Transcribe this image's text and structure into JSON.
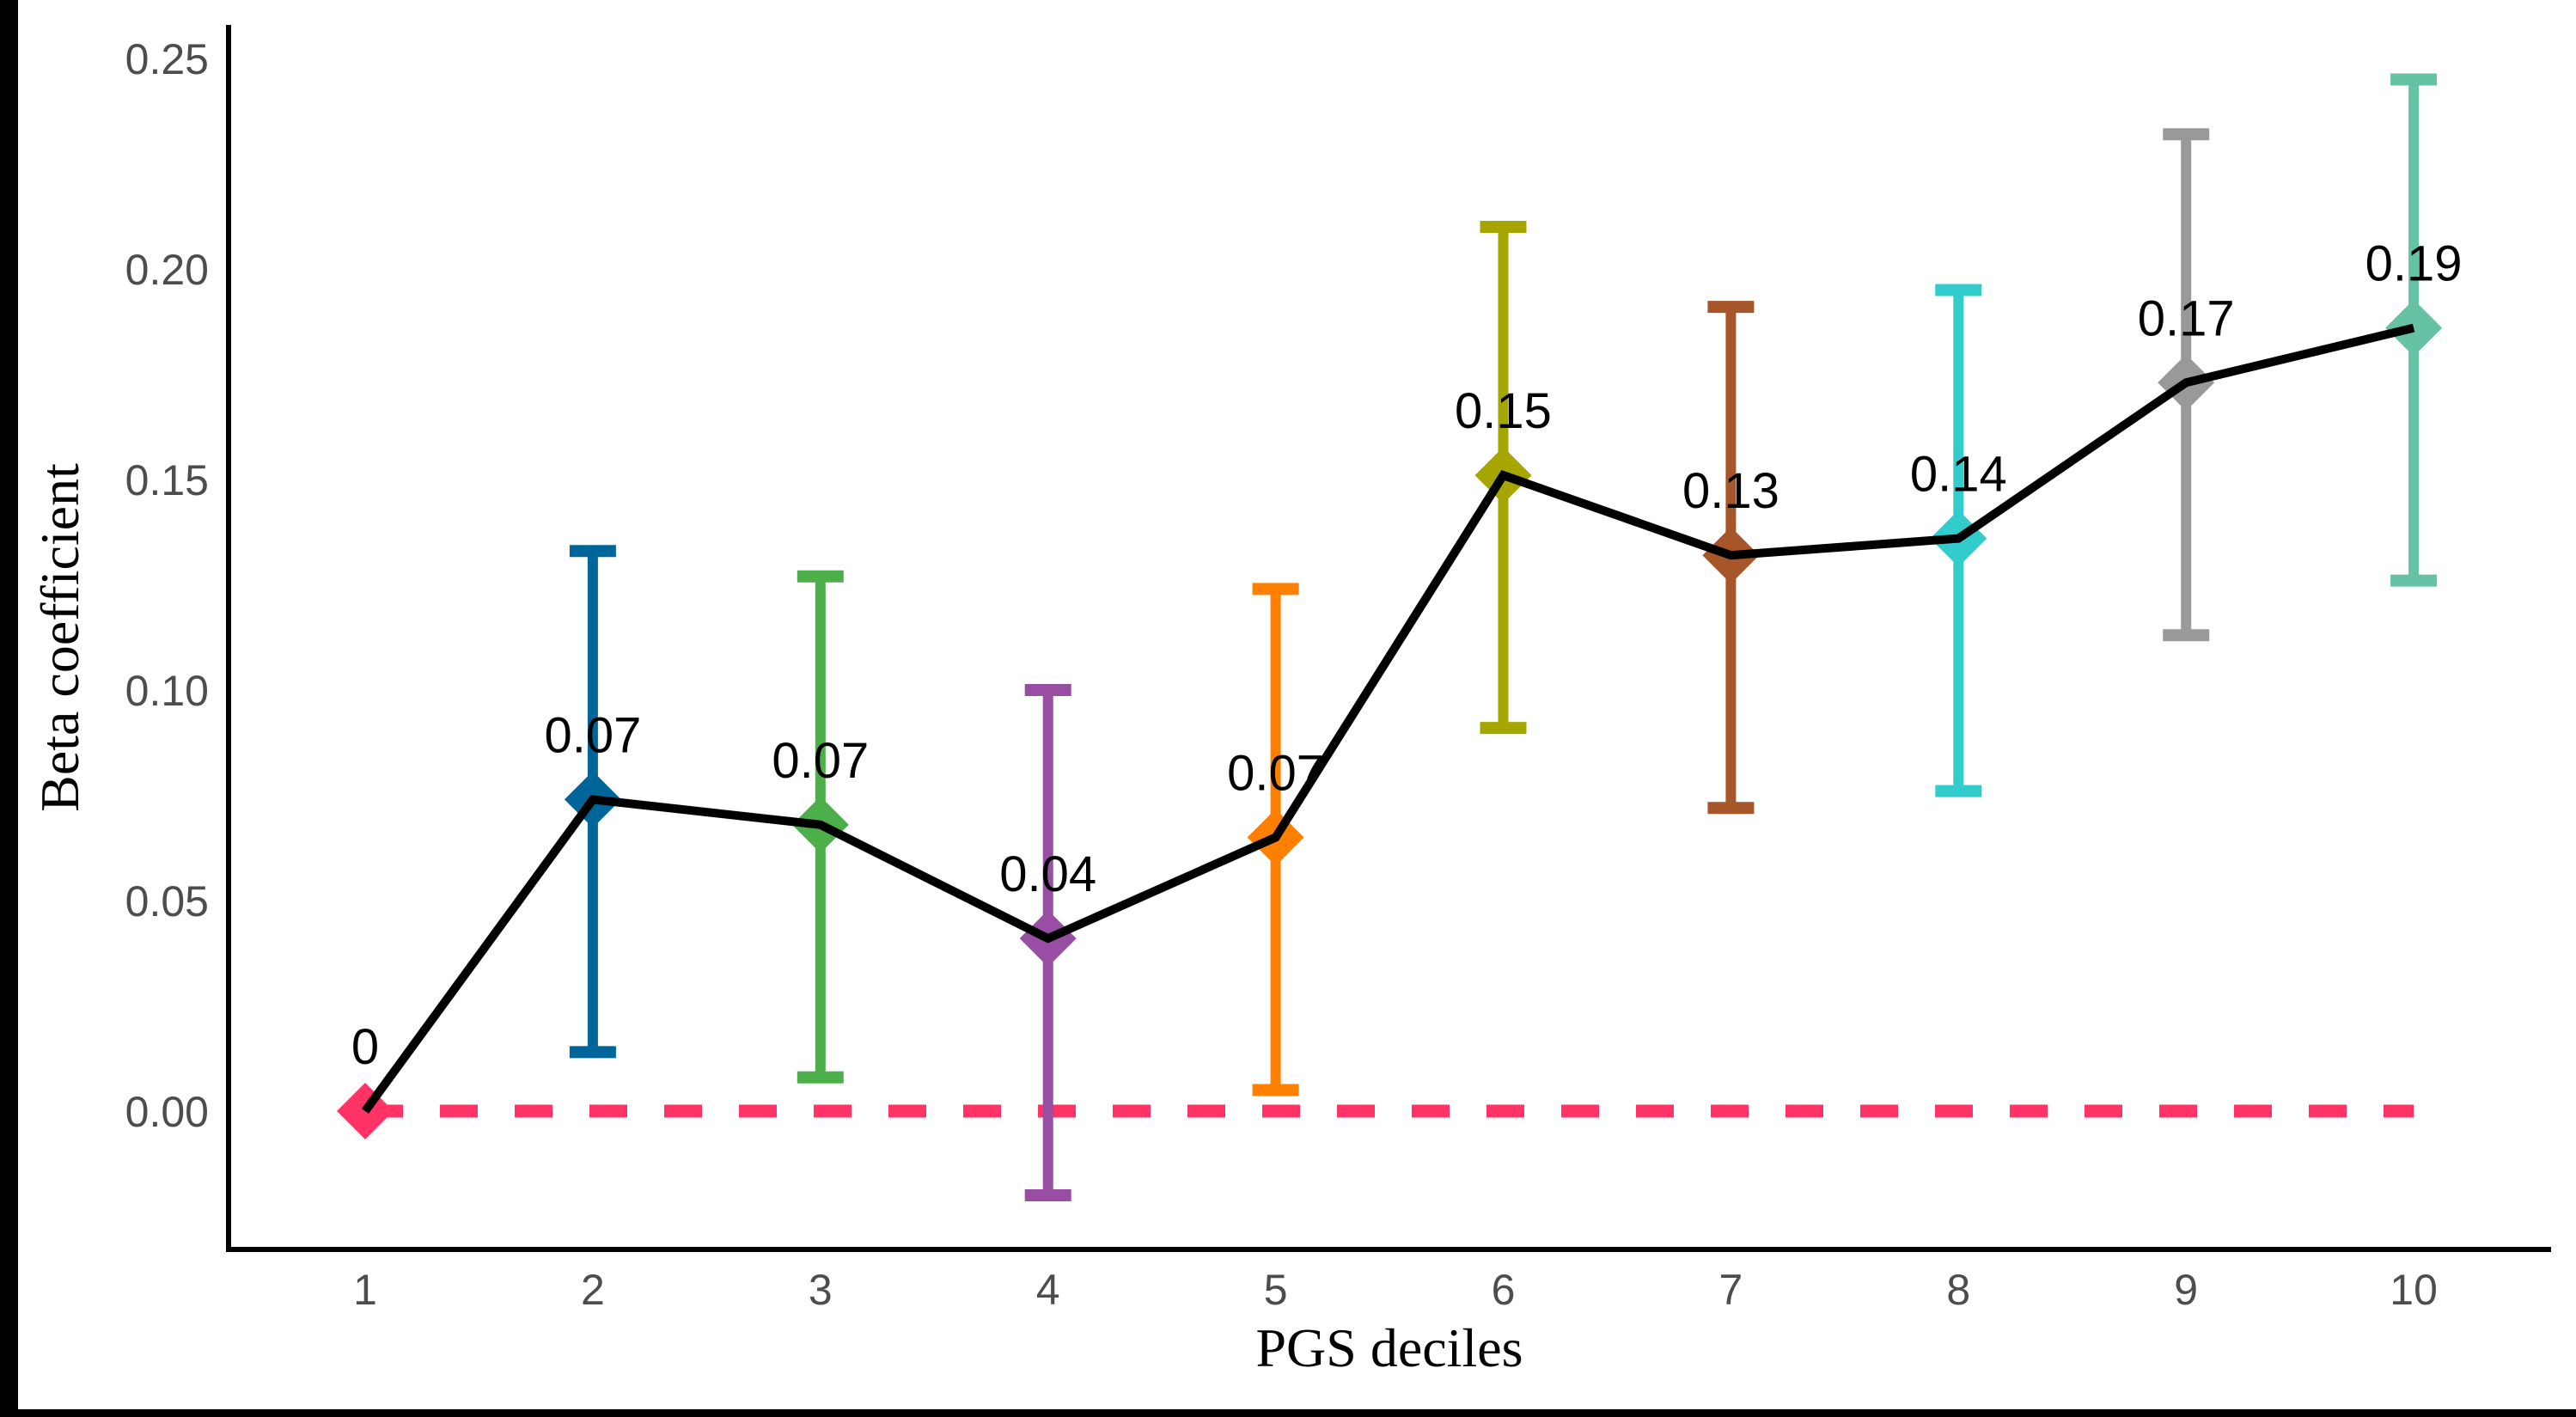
{
  "chart_data": {
    "type": "line",
    "title": "",
    "xlabel": "PGS deciles",
    "ylabel": "Beta coefficient",
    "categories": [
      "1",
      "2",
      "3",
      "4",
      "5",
      "6",
      "7",
      "8",
      "9",
      "10"
    ],
    "ylim": [
      -0.033,
      0.258
    ],
    "yticks": [
      0.0,
      0.05,
      0.1,
      0.15,
      0.2,
      0.25
    ],
    "ytick_labels": [
      "0.00",
      "0.05",
      "0.10",
      "0.15",
      "0.20",
      "0.25"
    ],
    "grid": false,
    "legend": "none",
    "series": [
      {
        "name": "Beta coefficient",
        "line_color": "#000000",
        "marker": "diamond",
        "values": [
          0.0,
          0.074,
          0.068,
          0.041,
          0.065,
          0.151,
          0.132,
          0.136,
          0.173,
          0.186
        ],
        "ci_lower": [
          null,
          0.014,
          0.008,
          -0.02,
          0.005,
          0.091,
          0.072,
          0.076,
          0.113,
          0.126
        ],
        "ci_upper": [
          null,
          0.133,
          0.127,
          0.1,
          0.124,
          0.21,
          0.191,
          0.195,
          0.232,
          0.245
        ],
        "data_labels": [
          "0",
          "0.07",
          "0.07",
          "0.04",
          "0.07",
          "0.15",
          "0.13",
          "0.14",
          "0.17",
          "0.19"
        ],
        "point_colors": [
          "#FF3366",
          "#006699",
          "#4DAF4A",
          "#984EA3",
          "#FF7F00",
          "#A6A600",
          "#A65628",
          "#33CCCC",
          "#999999",
          "#66C2A5"
        ]
      }
    ],
    "reference_line": {
      "y": 0.0,
      "style": "dashed",
      "color": "#FF3366",
      "x_from": "1",
      "x_to": "10"
    }
  }
}
